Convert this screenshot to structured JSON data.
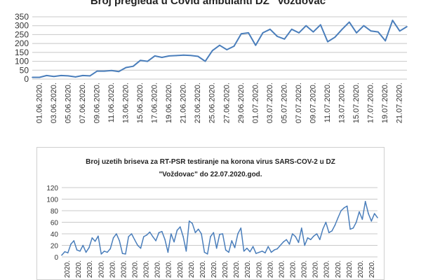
{
  "chart_data": [
    {
      "type": "line",
      "title": "Broj pregleda u Covid ambulanti DZ \"Voždovac\"",
      "xlabel": "",
      "ylabel": "",
      "ylim": [
        0,
        350
      ],
      "yticks": [
        "0",
        "50",
        "100",
        "150",
        "200",
        "250",
        "300",
        "350"
      ],
      "x_tick_labels": [
        "01.06.2020.",
        "03.06.2020.",
        "05.06.2020.",
        "07.06.2020.",
        "09.06.2020.",
        "11.06.2020.",
        "13.06.2020.",
        "15.06.2020.",
        "17.06.2020.",
        "19.06.2020.",
        "21.06.2020.",
        "23.06.2020.",
        "25.06.2020.",
        "27.06.2020.",
        "29.06.2020.",
        "01.07.2020.",
        "03.07.2020.",
        "05.07.2020.",
        "07.07.2020.",
        "09.07.2020.",
        "11.07.2020.",
        "13.07.2020.",
        "15.07.2020.",
        "17.07.2020.",
        "19.07.2020.",
        "21.07.2020."
      ],
      "grid": true,
      "color": "#4a7ebb",
      "values": [
        10,
        10,
        20,
        15,
        20,
        18,
        12,
        20,
        18,
        45,
        45,
        48,
        42,
        65,
        72,
        105,
        100,
        130,
        122,
        130,
        132,
        135,
        133,
        128,
        100,
        160,
        190,
        165,
        185,
        255,
        260,
        190,
        260,
        280,
        240,
        225,
        280,
        260,
        300,
        265,
        305,
        210,
        235,
        280,
        320,
        260,
        300,
        270,
        265,
        215,
        330,
        270,
        295
      ]
    },
    {
      "type": "line",
      "title_lines": [
        "Broj uzetih briseva za RT-PSR testiranje na korona  virus SARS-COV-2 u DZ",
        "\"Voždovac\" do 22.07.2020.god."
      ],
      "xlabel": "",
      "ylabel": "",
      "ylim": [
        0,
        120
      ],
      "yticks": [
        "0",
        "20",
        "40",
        "60",
        "80",
        "100",
        "120"
      ],
      "x_tick_label_count": 28,
      "x_tick_label": "2020.",
      "grid": true,
      "color": "#4a7ebb",
      "values": [
        3,
        9,
        7,
        22,
        28,
        12,
        10,
        20,
        8,
        16,
        33,
        27,
        36,
        5,
        10,
        8,
        14,
        33,
        40,
        28,
        6,
        5,
        35,
        40,
        30,
        20,
        15,
        35,
        38,
        43,
        35,
        28,
        42,
        44,
        30,
        8,
        40,
        26,
        46,
        52,
        35,
        10,
        62,
        58,
        42,
        48,
        40,
        8,
        5,
        35,
        42,
        15,
        39,
        40,
        12,
        8,
        28,
        16,
        40,
        50,
        10,
        15,
        9,
        18,
        6,
        8,
        10,
        7,
        18,
        8,
        12,
        14,
        20,
        26,
        30,
        22,
        40,
        35,
        25,
        50,
        20,
        33,
        30,
        36,
        40,
        30,
        48,
        60,
        42,
        45,
        55,
        68,
        80,
        85,
        88,
        48,
        50,
        60,
        78,
        65,
        96,
        75,
        62,
        75,
        68
      ]
    }
  ]
}
